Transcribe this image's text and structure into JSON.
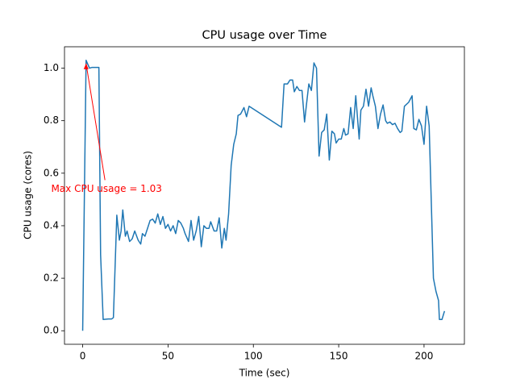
{
  "chart_data": {
    "type": "line",
    "title": "CPU usage over Time",
    "x_label": "Time (sec)",
    "y_label": "CPU usage (cores)",
    "color": "#1f77b4",
    "x": [
      0,
      2,
      4,
      5.5,
      9.5,
      10.5,
      12,
      15,
      17,
      18,
      20,
      21.5,
      22.5,
      23.5,
      25,
      26,
      27.5,
      29,
      30.5,
      32.5,
      34,
      35,
      36.5,
      38,
      39.5,
      41,
      42.5,
      44,
      45.5,
      47,
      48.5,
      50,
      51.5,
      53,
      54.5,
      56,
      57.5,
      59,
      60,
      62,
      63.5,
      65,
      66.5,
      68,
      69.5,
      71,
      72.5,
      74,
      75,
      77,
      78.5,
      80,
      81.5,
      83,
      84,
      85.5,
      87,
      88.5,
      90,
      91,
      92.5,
      94.5,
      96,
      97.5,
      116.5,
      118,
      120,
      121.5,
      123,
      124,
      125.5,
      127,
      128.5,
      130,
      131,
      132.5,
      134,
      135.5,
      137,
      138.5,
      140,
      141.5,
      143,
      144.5,
      146,
      147.5,
      148.5,
      150,
      151.5,
      153,
      154,
      155.5,
      157,
      158.5,
      160,
      162,
      163,
      164.5,
      166,
      167.5,
      169,
      170,
      171.5,
      173,
      174.5,
      176,
      177.5,
      178.5,
      180,
      181.5,
      183,
      184.5,
      186,
      187,
      188.5,
      191,
      193,
      194,
      195.5,
      197,
      198.5,
      200,
      201.5,
      203,
      205.5,
      207,
      208.5,
      209,
      210.5,
      212
    ],
    "values": [
      0,
      1.03,
      1.0,
      1.003,
      1.003,
      0.29,
      0.043,
      0.045,
      0.045,
      0.05,
      0.44,
      0.345,
      0.38,
      0.46,
      0.36,
      0.38,
      0.34,
      0.35,
      0.38,
      0.345,
      0.33,
      0.37,
      0.36,
      0.39,
      0.42,
      0.425,
      0.41,
      0.445,
      0.405,
      0.435,
      0.39,
      0.405,
      0.38,
      0.4,
      0.37,
      0.42,
      0.41,
      0.39,
      0.37,
      0.34,
      0.42,
      0.345,
      0.38,
      0.435,
      0.32,
      0.4,
      0.39,
      0.39,
      0.415,
      0.38,
      0.38,
      0.43,
      0.315,
      0.39,
      0.345,
      0.445,
      0.63,
      0.71,
      0.75,
      0.82,
      0.825,
      0.85,
      0.815,
      0.855,
      0.775,
      0.94,
      0.94,
      0.955,
      0.955,
      0.91,
      0.93,
      0.915,
      0.915,
      0.795,
      0.855,
      0.94,
      0.915,
      1.02,
      1.0,
      0.665,
      0.755,
      0.765,
      0.825,
      0.65,
      0.76,
      0.75,
      0.715,
      0.73,
      0.73,
      0.77,
      0.745,
      0.75,
      0.85,
      0.77,
      0.895,
      0.73,
      0.84,
      0.855,
      0.92,
      0.855,
      0.925,
      0.895,
      0.855,
      0.77,
      0.825,
      0.86,
      0.8,
      0.79,
      0.795,
      0.785,
      0.79,
      0.77,
      0.755,
      0.76,
      0.855,
      0.87,
      0.895,
      0.77,
      0.765,
      0.805,
      0.78,
      0.71,
      0.855,
      0.78,
      0.2,
      0.15,
      0.115,
      0.043,
      0.043,
      0.075
    ],
    "xlim": [
      -10.65,
      223.65
    ],
    "ylim": [
      -0.0515,
      1.0815
    ],
    "xticks": [
      0,
      50,
      100,
      150,
      200
    ],
    "yticks": [
      {
        "value": 0,
        "label": "0.0"
      },
      {
        "value": 0.2,
        "label": "0.2"
      },
      {
        "value": 0.4,
        "label": "0.4"
      },
      {
        "value": 0.6,
        "label": "0.6"
      },
      {
        "value": 0.8,
        "label": "0.8"
      },
      {
        "value": 1.0,
        "label": "1.0"
      }
    ],
    "annotation": {
      "text": "Max CPU usage = 1.03",
      "xy": [
        2,
        1.03
      ],
      "xytext": [
        14,
        0.54
      ],
      "color": "#ff0000"
    }
  }
}
